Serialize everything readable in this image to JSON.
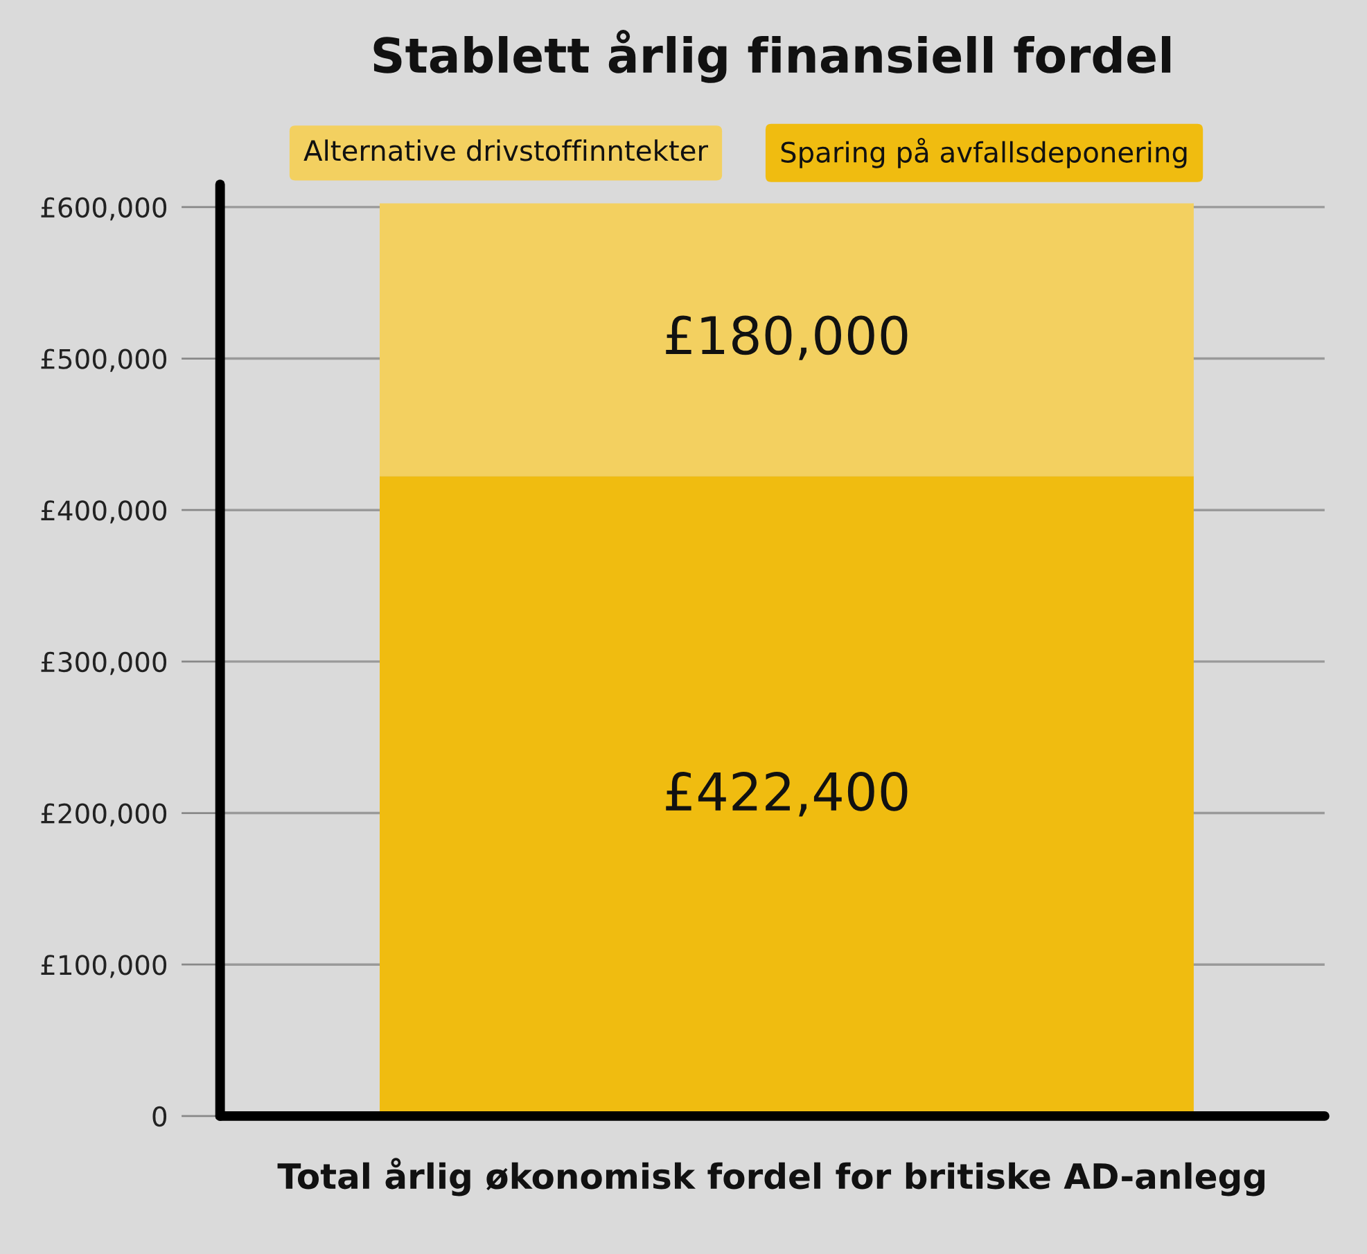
{
  "chart_data": {
    "type": "bar",
    "title": "Stablett årlig finansiell fordel",
    "xlabel": "Total årlig økonomisk fordel for britiske AD-anlegg",
    "categories": [
      null
    ],
    "stacked": true,
    "series": [
      {
        "name": "Sparing på avfallsdeponering",
        "color": "#f0bc10",
        "values": [
          422400
        ],
        "value_labels": [
          "£422,400"
        ]
      },
      {
        "name": "Alternative drivstoffinntekter",
        "color": "#f3d060",
        "values": [
          180000
        ],
        "value_labels": [
          "£180,000"
        ]
      }
    ],
    "ylim": [
      0,
      615000
    ],
    "yticks": [
      {
        "value": 0,
        "label": "0"
      },
      {
        "value": 100000,
        "label": "£100,000"
      },
      {
        "value": 200000,
        "label": "£200,000"
      },
      {
        "value": 300000,
        "label": "£300,000"
      },
      {
        "value": 400000,
        "label": "£400,000"
      },
      {
        "value": 500000,
        "label": "£500,000"
      },
      {
        "value": 600000,
        "label": "£600,000"
      }
    ],
    "grid": "y",
    "legend": "top"
  }
}
